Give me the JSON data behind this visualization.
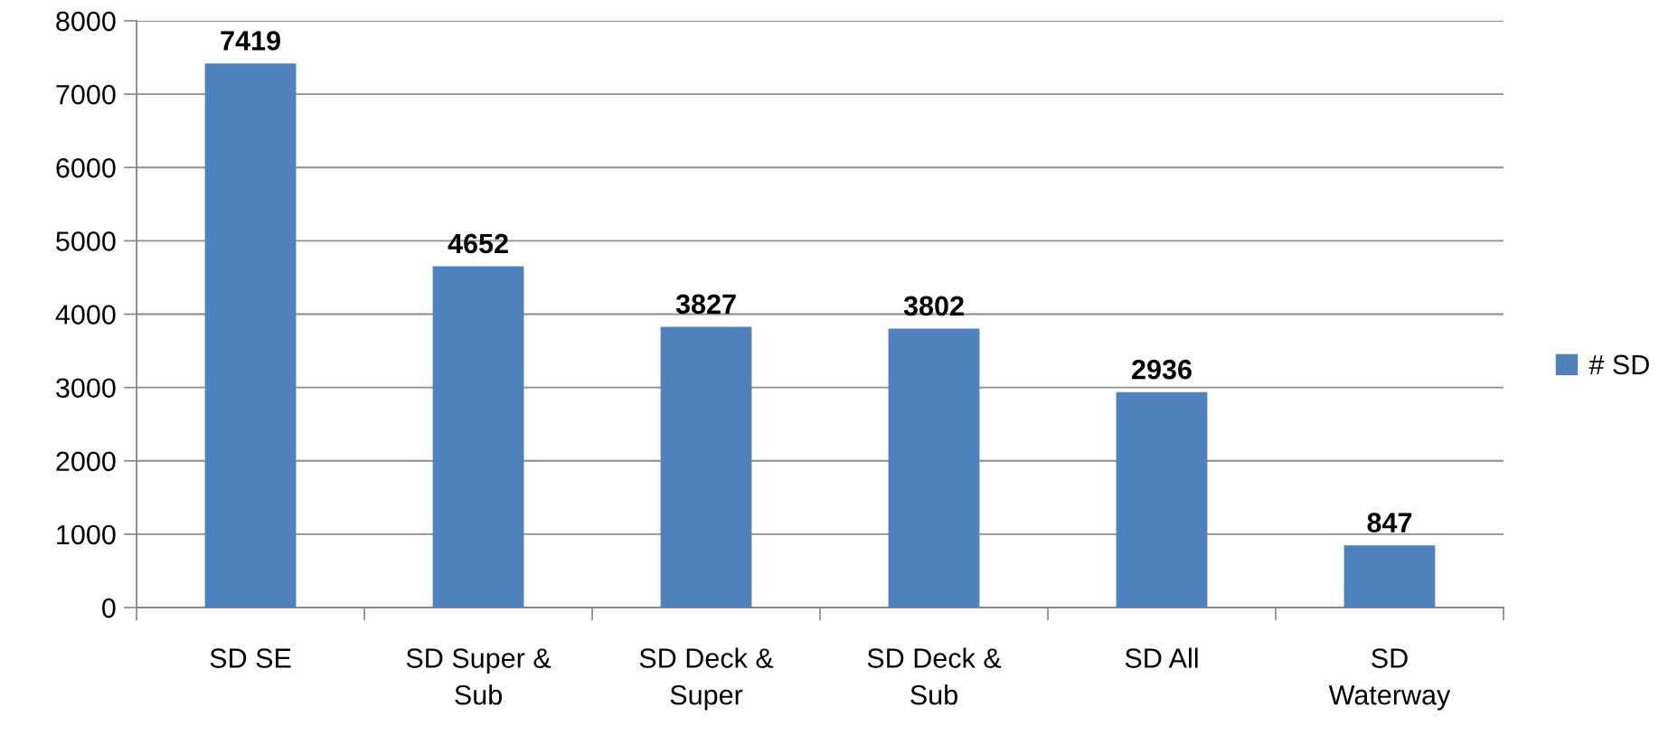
{
  "chart_data": {
    "type": "bar",
    "categories": [
      "SD SE",
      "SD Super &\nSub",
      "SD Deck &\nSuper",
      "SD Deck &\nSub",
      "SD All",
      "SD\nWaterway"
    ],
    "series": [
      {
        "name": "# SD",
        "color": "#4f81bd",
        "values": [
          7419,
          4652,
          3827,
          3802,
          2936,
          847
        ]
      }
    ],
    "ylim": [
      0,
      8000
    ],
    "yticks": [
      0,
      1000,
      2000,
      3000,
      4000,
      5000,
      6000,
      7000,
      8000
    ],
    "grid": "y",
    "legend": "right",
    "data_labels": true
  }
}
